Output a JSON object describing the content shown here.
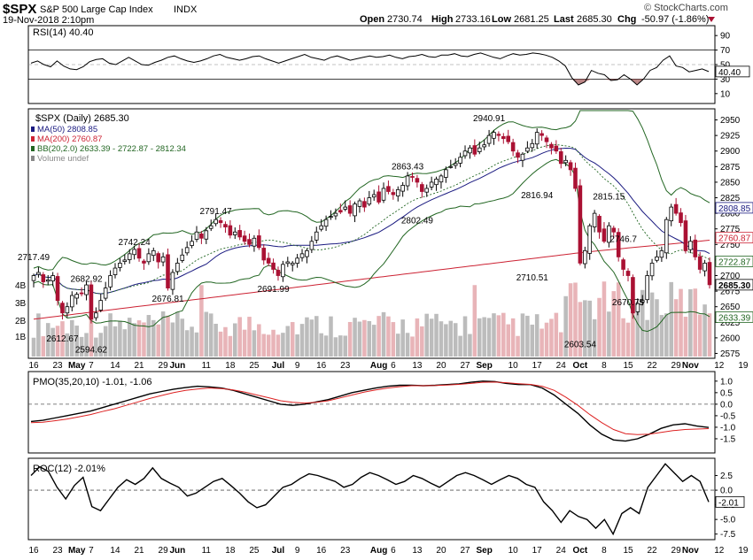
{
  "header": {
    "ticker": "$SPX",
    "name": "S&P 500 Large Cap Index",
    "exchange": "INDX",
    "date": "19-Nov-2018 2:10pm",
    "copyright": "© StockCharts.com",
    "open_label": "Open",
    "open": "2730.74",
    "high_label": "High",
    "high": "2733.16",
    "low_label": "Low",
    "low": "2681.25",
    "last_label": "Last",
    "last": "2685.30",
    "chg_label": "Chg",
    "chg": "-50.97 (-1.86%)",
    "down_color": "#aa1133"
  },
  "chart_data": [
    {
      "type": "line",
      "title": "RSI(14) 40.40",
      "ylim": [
        0,
        100
      ],
      "y_ticks": [
        10,
        30,
        50,
        70,
        90
      ],
      "y_tick_labels": [
        "10",
        "30",
        "50",
        "70",
        "90"
      ],
      "reference_lines": [
        30,
        70
      ],
      "last_value_label": "40.40",
      "series": [
        {
          "values": [
            52,
            55,
            50,
            47,
            55,
            48,
            44,
            43,
            47,
            54,
            57,
            58,
            52,
            50,
            55,
            60,
            55,
            50,
            49,
            53,
            56,
            60,
            62,
            58,
            55,
            53,
            55,
            58,
            62,
            64,
            60,
            58,
            56,
            58,
            61,
            62,
            58,
            55,
            52,
            55,
            58,
            61,
            64,
            60,
            58,
            56,
            60,
            62,
            59,
            56,
            58,
            60,
            62,
            60,
            61,
            63,
            60,
            58,
            61,
            62,
            64,
            61,
            60,
            63,
            63,
            65,
            62,
            61,
            64,
            66,
            63,
            60,
            58,
            62,
            65,
            63,
            64,
            66,
            65,
            63,
            60,
            55,
            48,
            32,
            22,
            26,
            42,
            38,
            36,
            28,
            29,
            36,
            30,
            22,
            30,
            42,
            46,
            56,
            62,
            48,
            46,
            40,
            42,
            44,
            40.4
          ]
        }
      ]
    },
    {
      "type": "bar",
      "title": "$SPX (Daily) 2685.30",
      "chart_type_detail": "candlestick",
      "ylim": [
        2570,
        2965
      ],
      "y_ticks": [
        2575,
        2600,
        2625,
        2650,
        2675,
        2700,
        2725,
        2750,
        2775,
        2800,
        2825,
        2850,
        2875,
        2900,
        2925,
        2950
      ],
      "y_tick_labels": [
        "2575",
        "2600",
        "2625",
        "2650",
        "2675",
        "2700",
        "2725",
        "2750",
        "2775",
        "2800",
        "2825",
        "2850",
        "2875",
        "2900",
        "2925",
        "2950"
      ],
      "legend": [
        "MA(50) 2808.85",
        "MA(200) 2760.87",
        "BB(20,2.0) 2633.39 - 2722.87 - 2812.34",
        "Volume undef"
      ],
      "legend_colors": [
        "#1a1a80",
        "#cc2233",
        "#226622",
        "#888888"
      ],
      "volume_ticks": [
        "4B",
        "3B",
        "2B",
        "1B"
      ],
      "annotations": [
        {
          "label": "2717.49",
          "index": 0,
          "value": 2717.49,
          "side": "above"
        },
        {
          "label": "2682.92",
          "index": 11,
          "value": 2682.92,
          "side": "above"
        },
        {
          "label": "2612.67",
          "index": 6,
          "value": 2612.67,
          "side": "below"
        },
        {
          "label": "2594.62",
          "index": 12,
          "value": 2594.62,
          "side": "below"
        },
        {
          "label": "2742.24",
          "index": 21,
          "value": 2742.24,
          "side": "above"
        },
        {
          "label": "2676.81",
          "index": 28,
          "value": 2676.81,
          "side": "below"
        },
        {
          "label": "2791.47",
          "index": 38,
          "value": 2791.47,
          "side": "above"
        },
        {
          "label": "2691.99",
          "index": 50,
          "value": 2691.99,
          "side": "below"
        },
        {
          "label": "2863.43",
          "index": 78,
          "value": 2863.43,
          "side": "above"
        },
        {
          "label": "2802.49",
          "index": 80,
          "value": 2802.49,
          "side": "below"
        },
        {
          "label": "2940.91",
          "index": 95,
          "value": 2940.91,
          "side": "above"
        },
        {
          "label": "2816.94",
          "index": 105,
          "value": 2816.94,
          "side": "above"
        },
        {
          "label": "2710.51",
          "index": 104,
          "value": 2710.51,
          "side": "below"
        },
        {
          "label": "2603.54",
          "index": 114,
          "value": 2603.54,
          "side": "below"
        },
        {
          "label": "2815.15",
          "index": 120,
          "value": 2815.15,
          "side": "above"
        },
        {
          "label": "2746.7",
          "index": 123,
          "value": 2746.7,
          "side": "above"
        },
        {
          "label": "2670.75",
          "index": 124,
          "value": 2670.75,
          "side": "below"
        }
      ],
      "right_badges": [
        {
          "label": "2808.85",
          "value": 2808.85,
          "color": "#1a1a80",
          "bg": "#ffffff"
        },
        {
          "label": "2760.87",
          "value": 2760.87,
          "color": "#cc2233",
          "bg": "#ffffff"
        },
        {
          "label": "2722.87",
          "value": 2722.87,
          "color": "#226622",
          "bg": "#ffffff"
        },
        {
          "label": "2685.30",
          "value": 2685.3,
          "color": "#000000",
          "bg": "#ffffff"
        },
        {
          "label": "2633.39",
          "value": 2633.39,
          "color": "#226622",
          "bg": "#ffffff"
        }
      ],
      "close": [
        2700,
        2705,
        2690,
        2693,
        2700,
        2660,
        2640,
        2650,
        2668,
        2670,
        2672,
        2685,
        2630,
        2640,
        2660,
        2680,
        2700,
        2712,
        2720,
        2725,
        2735,
        2742,
        2728,
        2720,
        2735,
        2740,
        2722,
        2730,
        2680,
        2705,
        2720,
        2733,
        2745,
        2755,
        2770,
        2760,
        2772,
        2780,
        2790,
        2785,
        2778,
        2765,
        2770,
        2762,
        2755,
        2750,
        2760,
        2745,
        2725,
        2720,
        2710,
        2700,
        2718,
        2722,
        2720,
        2728,
        2735,
        2740,
        2755,
        2770,
        2780,
        2790,
        2795,
        2800,
        2802,
        2810,
        2800,
        2815,
        2820,
        2810,
        2825,
        2830,
        2818,
        2840,
        2835,
        2830,
        2838,
        2845,
        2860,
        2858,
        2850,
        2835,
        2840,
        2850,
        2855,
        2860,
        2870,
        2875,
        2880,
        2890,
        2900,
        2905,
        2895,
        2905,
        2910,
        2925,
        2930,
        2925,
        2920,
        2915,
        2900,
        2890,
        2895,
        2905,
        2912,
        2930,
        2925,
        2915,
        2905,
        2900,
        2880,
        2885,
        2870,
        2840,
        2720,
        2740,
        2780,
        2800,
        2770,
        2755,
        2780,
        2770,
        2730,
        2710,
        2700,
        2640,
        2655,
        2660,
        2700,
        2720,
        2730,
        2740,
        2790,
        2810,
        2800,
        2785,
        2740,
        2755,
        2730,
        2710,
        2720,
        2685.3
      ],
      "x_ticks": [
        {
          "label": "16",
          "index": 0
        },
        {
          "label": "23",
          "index": 5
        },
        {
          "label": "May",
          "index": 9,
          "bold": true
        },
        {
          "label": "7",
          "index": 12
        },
        {
          "label": "14",
          "index": 17
        },
        {
          "label": "21",
          "index": 22
        },
        {
          "label": "29",
          "index": 27
        },
        {
          "label": "Jun",
          "index": 30,
          "bold": true
        },
        {
          "label": "11",
          "index": 36
        },
        {
          "label": "18",
          "index": 41
        },
        {
          "label": "25",
          "index": 46
        },
        {
          "label": "Jul",
          "index": 51,
          "bold": true
        },
        {
          "label": "9",
          "index": 55
        },
        {
          "label": "16",
          "index": 60
        },
        {
          "label": "23",
          "index": 65
        },
        {
          "label": "Aug",
          "index": 72,
          "bold": true
        },
        {
          "label": "6",
          "index": 75
        },
        {
          "label": "13",
          "index": 80
        },
        {
          "label": "20",
          "index": 85
        },
        {
          "label": "27",
          "index": 90
        },
        {
          "label": "Sep",
          "index": 94,
          "bold": true
        },
        {
          "label": "10",
          "index": 100
        },
        {
          "label": "17",
          "index": 105
        },
        {
          "label": "24",
          "index": 110
        },
        {
          "label": "Oct",
          "index": 114,
          "bold": true
        },
        {
          "label": "8",
          "index": 119
        },
        {
          "label": "15",
          "index": 124
        },
        {
          "label": "22",
          "index": 129
        },
        {
          "label": "29",
          "index": 134
        },
        {
          "label": "Nov",
          "index": 137,
          "bold": true
        },
        {
          "label": "12",
          "index": 143
        },
        {
          "label": "19",
          "index": 148
        }
      ]
    },
    {
      "type": "line",
      "title": "PMO(35,20,10) -1.01, -1.06",
      "ylim": [
        -2.0,
        1.3
      ],
      "y_ticks": [
        1.0,
        0.5,
        0.0,
        -0.5,
        -1.0,
        -1.5
      ],
      "y_tick_labels": [
        "1.0",
        "0.5",
        "0.0",
        "-0.5",
        "-1.0",
        "-1.5"
      ],
      "reference_lines": [
        0.0
      ],
      "series": [
        {
          "name": "PMO",
          "color": "#000000",
          "values": [
            -0.75,
            -0.7,
            -0.6,
            -0.5,
            -0.4,
            -0.3,
            -0.15,
            0.0,
            0.15,
            0.3,
            0.45,
            0.55,
            0.65,
            0.72,
            0.78,
            0.75,
            0.7,
            0.6,
            0.45,
            0.3,
            0.15,
            0.0,
            -0.05,
            0.0,
            0.1,
            0.2,
            0.35,
            0.5,
            0.6,
            0.7,
            0.78,
            0.82,
            0.82,
            0.8,
            0.82,
            0.85,
            0.88,
            0.95,
            1.0,
            0.98,
            0.9,
            0.85,
            0.85,
            0.7,
            0.4,
            0.0,
            -0.4,
            -0.9,
            -1.3,
            -1.55,
            -1.6,
            -1.5,
            -1.3,
            -1.05,
            -0.9,
            -0.85,
            -0.95,
            -1.01
          ]
        },
        {
          "name": "Signal",
          "color": "#dd2222",
          "values": [
            -0.8,
            -0.78,
            -0.72,
            -0.65,
            -0.55,
            -0.45,
            -0.32,
            -0.2,
            -0.05,
            0.1,
            0.25,
            0.38,
            0.5,
            0.6,
            0.66,
            0.7,
            0.68,
            0.62,
            0.52,
            0.4,
            0.28,
            0.15,
            0.08,
            0.05,
            0.08,
            0.15,
            0.27,
            0.4,
            0.52,
            0.62,
            0.7,
            0.76,
            0.8,
            0.8,
            0.81,
            0.83,
            0.86,
            0.9,
            0.95,
            0.96,
            0.93,
            0.89,
            0.86,
            0.78,
            0.6,
            0.3,
            -0.05,
            -0.45,
            -0.8,
            -1.1,
            -1.28,
            -1.32,
            -1.3,
            -1.22,
            -1.15,
            -1.1,
            -1.08,
            -1.06
          ]
        }
      ]
    },
    {
      "type": "line",
      "title": "ROC(12) -2.01%",
      "ylim": [
        -8.0,
        5.0
      ],
      "y_ticks": [
        2.5,
        0.0,
        -2.5,
        -5.0,
        -7.5
      ],
      "y_tick_labels": [
        "2.5",
        "0.0",
        "-2.5",
        "-5.0",
        "-7.5"
      ],
      "reference_lines": [
        0.0
      ],
      "last_value_label": "-2.01",
      "series": [
        {
          "values": [
            2.5,
            4.0,
            3.2,
            0.5,
            -1.5,
            0.8,
            2.2,
            -2.8,
            -3.5,
            -1.5,
            0.5,
            1.8,
            1.0,
            2.0,
            3.8,
            2.0,
            1.2,
            0.5,
            -1.0,
            -0.5,
            0.5,
            1.5,
            2.0,
            0.8,
            -0.5,
            -2.0,
            -3.0,
            -2.5,
            -1.0,
            0.5,
            1.0,
            2.0,
            2.8,
            2.5,
            2.0,
            1.5,
            0.5,
            1.0,
            2.2,
            3.0,
            2.5,
            1.8,
            1.0,
            1.5,
            2.5,
            2.0,
            1.2,
            0.5,
            1.5,
            2.5,
            3.0,
            2.5,
            1.8,
            1.0,
            1.8,
            2.5,
            2.0,
            1.0,
            0.5,
            -2.0,
            -3.5,
            -5.5,
            -3.5,
            -4.5,
            -5.0,
            -6.5,
            -5.0,
            -7.5,
            -4.0,
            -3.0,
            -4.0,
            0.5,
            2.5,
            4.5,
            3.0,
            1.5,
            2.5,
            1.5,
            -2.01
          ]
        }
      ]
    }
  ]
}
